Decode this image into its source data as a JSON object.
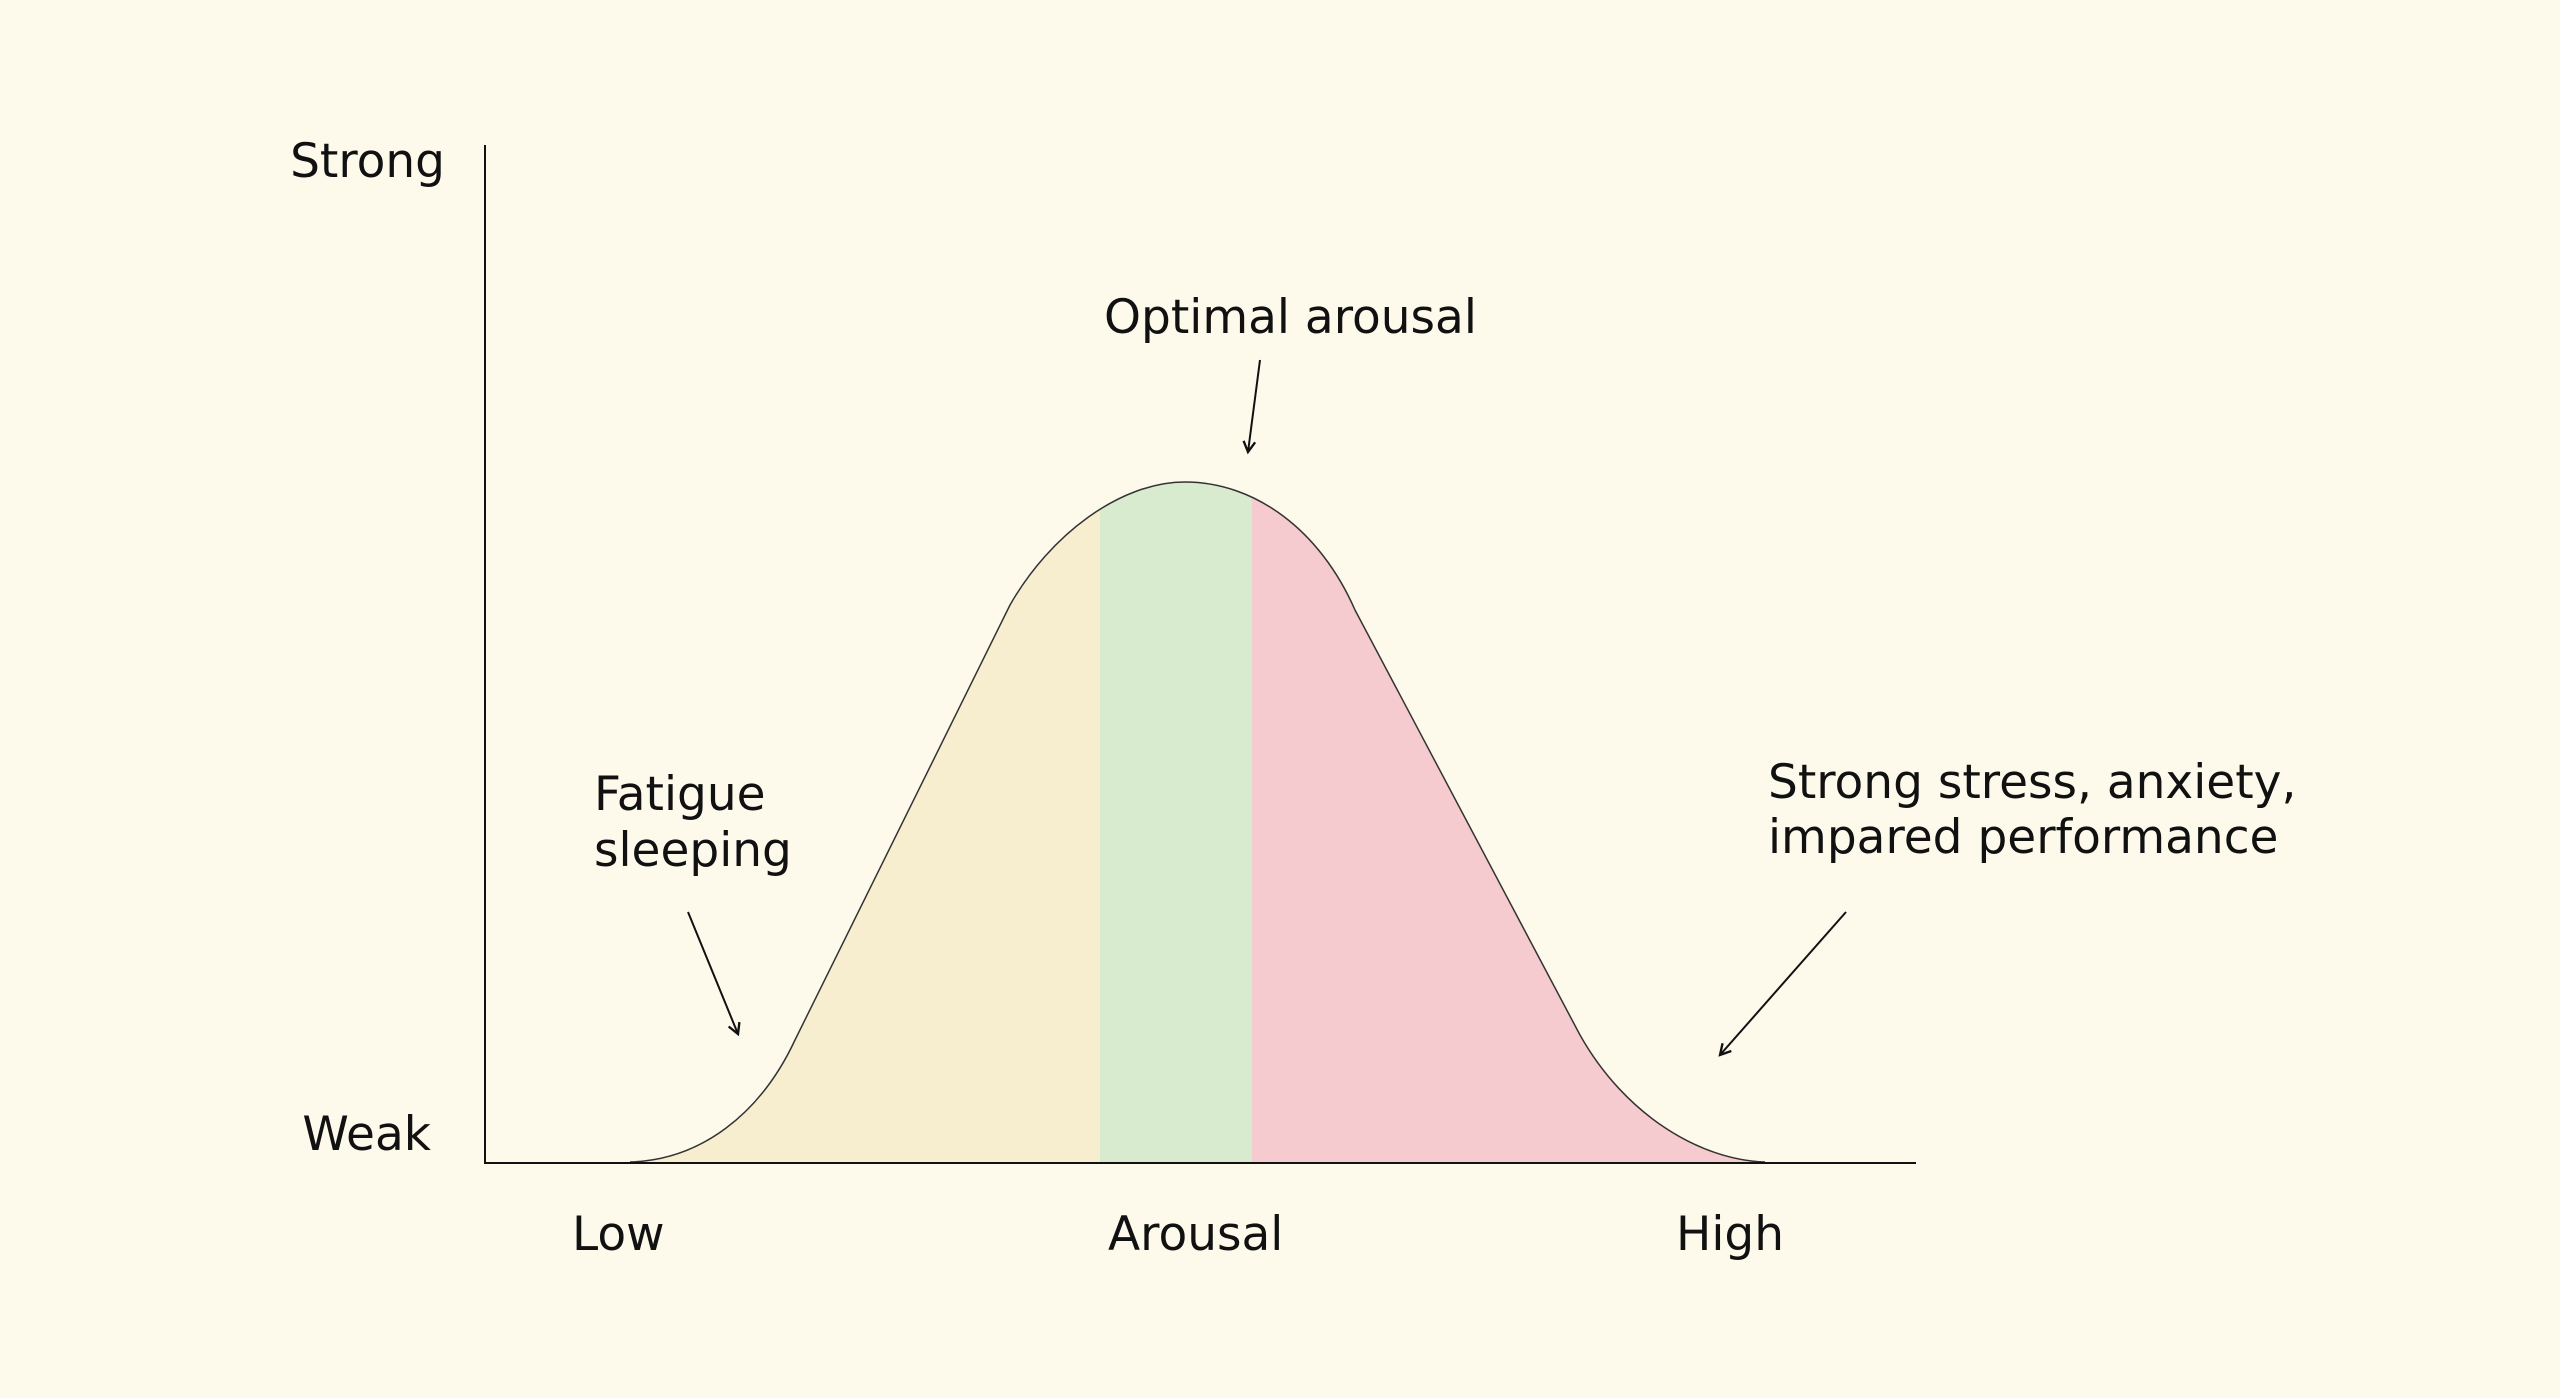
{
  "diagram": {
    "y_axis": {
      "top_label": "Strong",
      "bottom_label": "Weak"
    },
    "x_axis": {
      "left_label": "Low",
      "center_label": "Arousal",
      "right_label": "High"
    },
    "annotations": {
      "optimal": "Optimal arousal",
      "fatigue_line1": "Fatigue",
      "fatigue_line2": "sleeping",
      "stress_line1": "Strong stress, anxiety,",
      "stress_line2": "impared performance"
    },
    "zones": [
      {
        "name": "fatigue",
        "color": "#F7EED0"
      },
      {
        "name": "optimal",
        "color": "#D9EBCF"
      },
      {
        "name": "stress",
        "color": "#F6CBCF"
      }
    ],
    "colors": {
      "background": "#FDFAEC",
      "ink": "#111111"
    }
  }
}
